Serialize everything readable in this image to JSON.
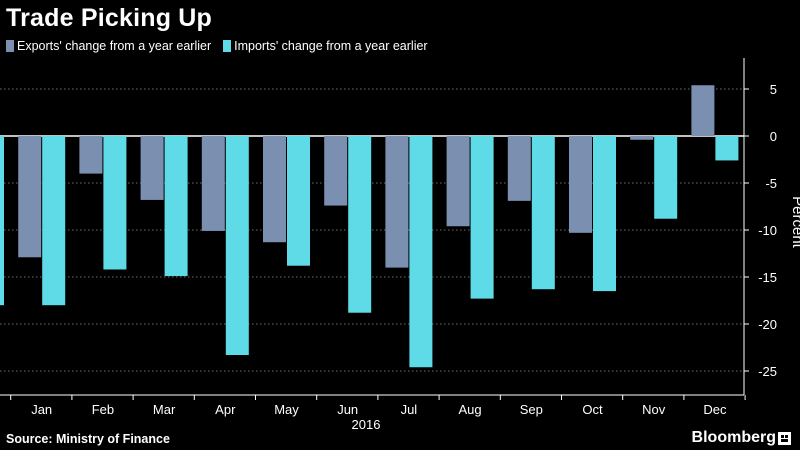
{
  "title": "Trade Picking Up",
  "source": "Source: Ministry of Finance",
  "brand": "Bloomberg",
  "colors": {
    "background": "#000000",
    "exports": "#7b8fb1",
    "imports": "#5edbe7",
    "grid": "#6b6b6b",
    "text": "#ffffff"
  },
  "chart_data": {
    "type": "bar",
    "title": "Trade Picking Up",
    "xlabel": "2016",
    "ylabel": "Percent",
    "ylim": [
      -27,
      8
    ],
    "yticks": [
      5,
      0,
      -5,
      -10,
      -15,
      -20,
      -25
    ],
    "grid": true,
    "legend": "top-left",
    "y_axis_position": "right",
    "categories": [
      "Dec",
      "Jan",
      "Feb",
      "Mar",
      "Apr",
      "May",
      "Jun",
      "Jul",
      "Aug",
      "Sep",
      "Oct",
      "Nov",
      "Dec"
    ],
    "x_tick_labels": [
      "",
      "Jan",
      "Feb",
      "Mar",
      "Apr",
      "May",
      "Jun",
      "Jul",
      "Aug",
      "Sep",
      "Oct",
      "Nov",
      "Dec"
    ],
    "series": [
      {
        "name": "Exports' change from a year earlier",
        "values": [
          null,
          -12.9,
          -4.0,
          -6.8,
          -10.1,
          -11.3,
          -7.4,
          -14.0,
          -9.6,
          -6.9,
          -10.3,
          -0.4,
          5.4
        ]
      },
      {
        "name": "Imports' change from a year earlier",
        "values": [
          -18.0,
          -18.0,
          -14.2,
          -14.9,
          -23.3,
          -13.8,
          -18.8,
          -24.6,
          -17.3,
          -16.3,
          -16.5,
          -8.8,
          -2.6
        ]
      }
    ]
  }
}
